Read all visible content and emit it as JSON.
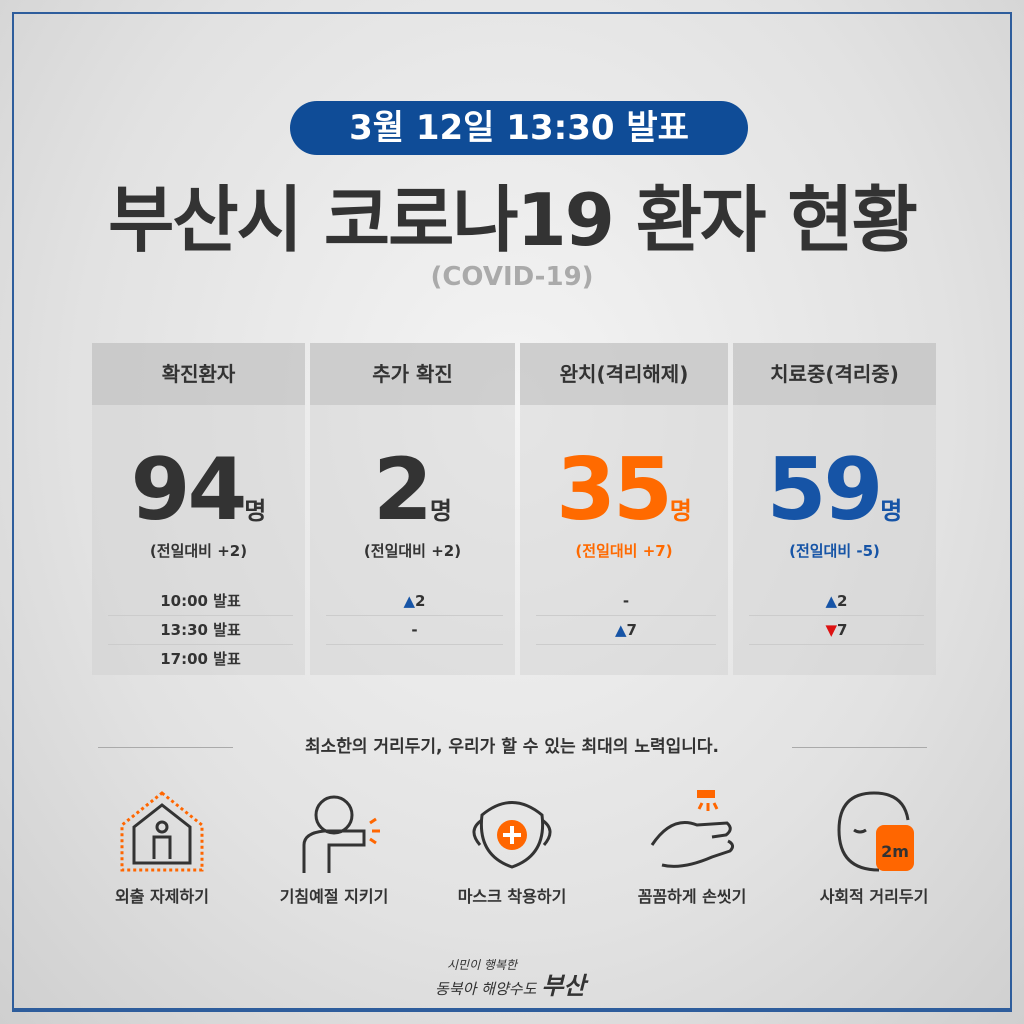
{
  "date_badge": "3월 12일 13:30 발표",
  "title": "부산시 코로나19 환자 현황",
  "subtitle": "(COVID-19)",
  "colors": {
    "brand": "#0f4c97",
    "orange": "#ff6a00",
    "blue": "#1654a6",
    "red": "#dd1111"
  },
  "stats": [
    {
      "header": "확진환자",
      "value": "94",
      "unit": "명",
      "compare": "(전일대비 +2)",
      "rows": [
        "10:00 발표",
        "13:30 발표",
        "17:00 발표"
      ]
    },
    {
      "header": "추가 확진",
      "value": "2",
      "unit": "명",
      "compare": "(전일대비 +2)",
      "rows": [
        "2",
        "-",
        ""
      ]
    },
    {
      "header": "완치(격리해제)",
      "value": "35",
      "unit": "명",
      "compare": "(전일대비 +7)",
      "rows": [
        "-",
        "7",
        ""
      ]
    },
    {
      "header": "치료중(격리중)",
      "value": "59",
      "unit": "명",
      "compare": "(전일대비 -5)",
      "rows": [
        "2",
        "7",
        ""
      ]
    }
  ],
  "tagline": "최소한의 거리두기, 우리가 할 수 있는 최대의 노력입니다.",
  "actions": [
    {
      "label": "외출 자제하기",
      "icon": "house-person-icon"
    },
    {
      "label": "기침예절 지키기",
      "icon": "cough-elbow-icon"
    },
    {
      "label": "마스크 착용하기",
      "icon": "mask-icon"
    },
    {
      "label": "꼼꼼하게 손씻기",
      "icon": "handwash-icon"
    },
    {
      "label": "사회적 거리두기",
      "icon": "distance-hand-icon",
      "badge": "2m"
    }
  ],
  "logo": {
    "line1": "시민이 행복한",
    "line2": "동북아 해양수도",
    "line3": "부산"
  }
}
